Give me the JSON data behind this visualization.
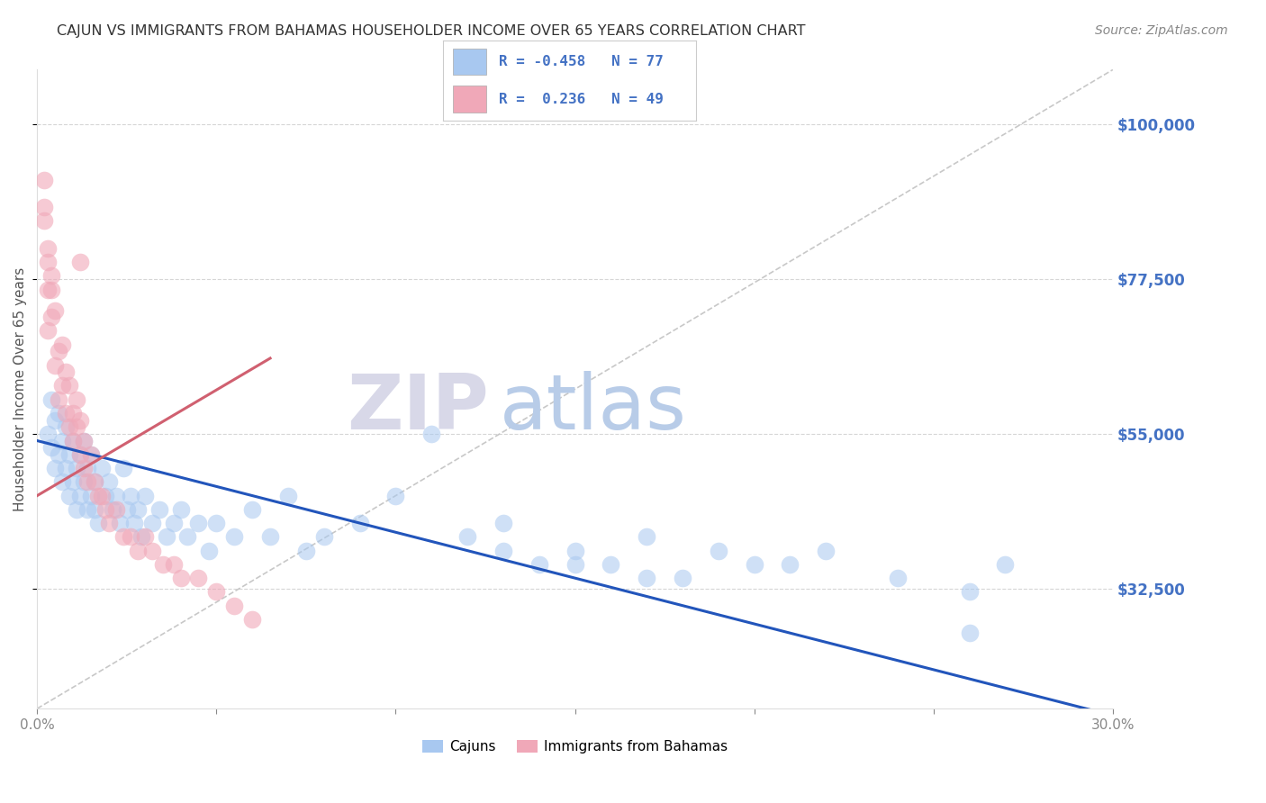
{
  "title": "CAJUN VS IMMIGRANTS FROM BAHAMAS HOUSEHOLDER INCOME OVER 65 YEARS CORRELATION CHART",
  "source": "Source: ZipAtlas.com",
  "ylabel": "Householder Income Over 65 years",
  "xlim": [
    0.0,
    0.3
  ],
  "ylim": [
    15000,
    108000
  ],
  "xticks": [
    0.0,
    0.05,
    0.1,
    0.15,
    0.2,
    0.25,
    0.3
  ],
  "ytick_positions": [
    32500,
    55000,
    77500,
    100000
  ],
  "ytick_labels": [
    "$32,500",
    "$55,000",
    "$77,500",
    "$100,000"
  ],
  "grid_color": "#cccccc",
  "background_color": "#ffffff",
  "cajun_color": "#a8c8f0",
  "bahamas_color": "#f0a8b8",
  "cajun_line_color": "#2255bb",
  "bahamas_line_color": "#d06070",
  "diagonal_line_color": "#c8c8c8",
  "legend_R_cajun": "-0.458",
  "legend_N_cajun": "77",
  "legend_R_bahamas": "0.236",
  "legend_N_bahamas": "49",
  "watermark_zip": "ZIP",
  "watermark_atlas": "atlas",
  "watermark_zip_color": "#d8d8e8",
  "watermark_atlas_color": "#b8cce8",
  "cajun_line_x0": 0.0,
  "cajun_line_y0": 54000,
  "cajun_line_x1": 0.3,
  "cajun_line_y1": 14000,
  "bahamas_line_x0": 0.0,
  "bahamas_line_y0": 46000,
  "bahamas_line_x1": 0.065,
  "bahamas_line_y1": 66000,
  "diag_line_x0": 0.0,
  "diag_line_y0": 15000,
  "diag_line_x1": 0.3,
  "diag_line_y1": 108000,
  "cajun_x": [
    0.003,
    0.004,
    0.004,
    0.005,
    0.005,
    0.006,
    0.006,
    0.007,
    0.007,
    0.008,
    0.008,
    0.009,
    0.009,
    0.01,
    0.01,
    0.011,
    0.011,
    0.012,
    0.012,
    0.013,
    0.013,
    0.014,
    0.014,
    0.015,
    0.015,
    0.016,
    0.016,
    0.017,
    0.018,
    0.019,
    0.02,
    0.021,
    0.022,
    0.023,
    0.024,
    0.025,
    0.026,
    0.027,
    0.028,
    0.029,
    0.03,
    0.032,
    0.034,
    0.036,
    0.038,
    0.04,
    0.042,
    0.045,
    0.048,
    0.05,
    0.055,
    0.06,
    0.065,
    0.07,
    0.075,
    0.08,
    0.09,
    0.1,
    0.11,
    0.12,
    0.13,
    0.14,
    0.15,
    0.16,
    0.17,
    0.18,
    0.2,
    0.22,
    0.24,
    0.26,
    0.27,
    0.13,
    0.15,
    0.17,
    0.19,
    0.21,
    0.26
  ],
  "cajun_y": [
    55000,
    53000,
    60000,
    50000,
    57000,
    52000,
    58000,
    48000,
    54000,
    50000,
    56000,
    52000,
    46000,
    54000,
    48000,
    50000,
    44000,
    52000,
    46000,
    48000,
    54000,
    50000,
    44000,
    46000,
    52000,
    48000,
    44000,
    42000,
    50000,
    46000,
    48000,
    44000,
    46000,
    42000,
    50000,
    44000,
    46000,
    42000,
    44000,
    40000,
    46000,
    42000,
    44000,
    40000,
    42000,
    44000,
    40000,
    42000,
    38000,
    42000,
    40000,
    44000,
    40000,
    46000,
    38000,
    40000,
    42000,
    46000,
    55000,
    40000,
    38000,
    36000,
    38000,
    36000,
    34000,
    34000,
    36000,
    38000,
    34000,
    32000,
    36000,
    42000,
    36000,
    40000,
    38000,
    36000,
    26000
  ],
  "bahamas_x": [
    0.002,
    0.002,
    0.003,
    0.003,
    0.004,
    0.004,
    0.005,
    0.005,
    0.006,
    0.006,
    0.007,
    0.007,
    0.008,
    0.008,
    0.009,
    0.009,
    0.01,
    0.01,
    0.011,
    0.011,
    0.012,
    0.012,
    0.013,
    0.013,
    0.014,
    0.015,
    0.016,
    0.017,
    0.018,
    0.019,
    0.02,
    0.022,
    0.024,
    0.026,
    0.028,
    0.03,
    0.032,
    0.035,
    0.038,
    0.04,
    0.045,
    0.05,
    0.055,
    0.06,
    0.002,
    0.003,
    0.003,
    0.004,
    0.012
  ],
  "bahamas_y": [
    88000,
    92000,
    70000,
    80000,
    72000,
    76000,
    65000,
    73000,
    60000,
    67000,
    62000,
    68000,
    58000,
    64000,
    56000,
    62000,
    58000,
    54000,
    56000,
    60000,
    52000,
    57000,
    50000,
    54000,
    48000,
    52000,
    48000,
    46000,
    46000,
    44000,
    42000,
    44000,
    40000,
    40000,
    38000,
    40000,
    38000,
    36000,
    36000,
    34000,
    34000,
    32000,
    30000,
    28000,
    86000,
    76000,
    82000,
    78000,
    80000
  ]
}
